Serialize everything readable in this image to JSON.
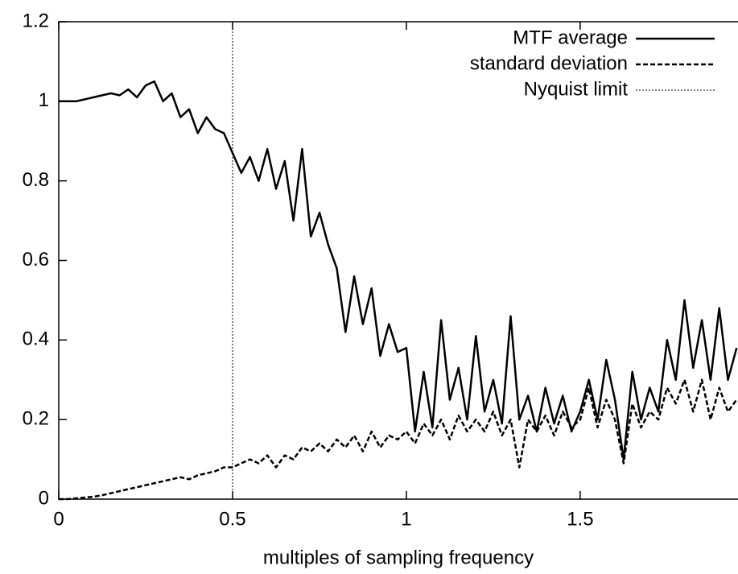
{
  "chart_data": {
    "type": "line",
    "xlabel": "multiples of sampling frequency",
    "x": [
      0,
      0.025,
      0.05,
      0.075,
      0.1,
      0.125,
      0.15,
      0.175,
      0.2,
      0.225,
      0.25,
      0.275,
      0.3,
      0.325,
      0.35,
      0.375,
      0.4,
      0.425,
      0.45,
      0.475,
      0.5,
      0.525,
      0.55,
      0.575,
      0.6,
      0.625,
      0.65,
      0.675,
      0.7,
      0.725,
      0.75,
      0.775,
      0.8,
      0.825,
      0.85,
      0.875,
      0.9,
      0.925,
      0.95,
      0.975,
      1.0,
      1.025,
      1.05,
      1.075,
      1.1,
      1.125,
      1.15,
      1.175,
      1.2,
      1.225,
      1.25,
      1.275,
      1.3,
      1.325,
      1.35,
      1.375,
      1.4,
      1.425,
      1.45,
      1.475,
      1.5,
      1.525,
      1.55,
      1.575,
      1.6,
      1.625,
      1.65,
      1.675,
      1.7,
      1.725,
      1.75,
      1.775,
      1.8,
      1.825,
      1.85,
      1.875,
      1.9,
      1.925,
      1.95
    ],
    "series": [
      {
        "name": "MTF average",
        "color": "#000000",
        "dash": "solid",
        "values": [
          1.0,
          1.0,
          1.0,
          1.005,
          1.01,
          1.015,
          1.02,
          1.015,
          1.03,
          1.01,
          1.04,
          1.05,
          1.0,
          1.02,
          0.96,
          0.98,
          0.92,
          0.96,
          0.93,
          0.92,
          0.87,
          0.82,
          0.86,
          0.8,
          0.88,
          0.78,
          0.85,
          0.7,
          0.88,
          0.66,
          0.72,
          0.64,
          0.58,
          0.42,
          0.56,
          0.44,
          0.53,
          0.36,
          0.44,
          0.37,
          0.38,
          0.17,
          0.32,
          0.18,
          0.45,
          0.25,
          0.33,
          0.2,
          0.41,
          0.22,
          0.3,
          0.19,
          0.46,
          0.2,
          0.26,
          0.17,
          0.28,
          0.19,
          0.26,
          0.17,
          0.22,
          0.3,
          0.2,
          0.35,
          0.25,
          0.1,
          0.32,
          0.2,
          0.28,
          0.22,
          0.4,
          0.3,
          0.5,
          0.33,
          0.45,
          0.3,
          0.48,
          0.3,
          0.38
        ]
      },
      {
        "name": "standard deviation",
        "color": "#000000",
        "dash": "dashed",
        "values": [
          0,
          0,
          0.002,
          0.004,
          0.006,
          0.01,
          0.015,
          0.02,
          0.025,
          0.03,
          0.035,
          0.04,
          0.045,
          0.05,
          0.055,
          0.05,
          0.06,
          0.065,
          0.07,
          0.08,
          0.08,
          0.09,
          0.1,
          0.09,
          0.11,
          0.08,
          0.11,
          0.1,
          0.13,
          0.12,
          0.14,
          0.12,
          0.15,
          0.13,
          0.16,
          0.12,
          0.17,
          0.13,
          0.16,
          0.15,
          0.17,
          0.14,
          0.19,
          0.16,
          0.2,
          0.15,
          0.21,
          0.17,
          0.2,
          0.17,
          0.22,
          0.16,
          0.2,
          0.08,
          0.2,
          0.17,
          0.21,
          0.16,
          0.22,
          0.18,
          0.2,
          0.28,
          0.18,
          0.25,
          0.2,
          0.09,
          0.24,
          0.18,
          0.22,
          0.2,
          0.28,
          0.24,
          0.3,
          0.22,
          0.3,
          0.2,
          0.28,
          0.22,
          0.25
        ]
      }
    ],
    "vlines": [
      {
        "name": "Nyquist limit",
        "x": 0.5,
        "color": "#000000",
        "dash": "dotted"
      }
    ],
    "xlim": [
      0,
      1.954
    ],
    "ylim": [
      0,
      1.2
    ],
    "xticks": [
      0,
      0.5,
      1,
      1.5
    ],
    "yticks": [
      0,
      0.2,
      0.4,
      0.6,
      0.8,
      1,
      1.2
    ],
    "legend": "top-right",
    "grid": false
  }
}
